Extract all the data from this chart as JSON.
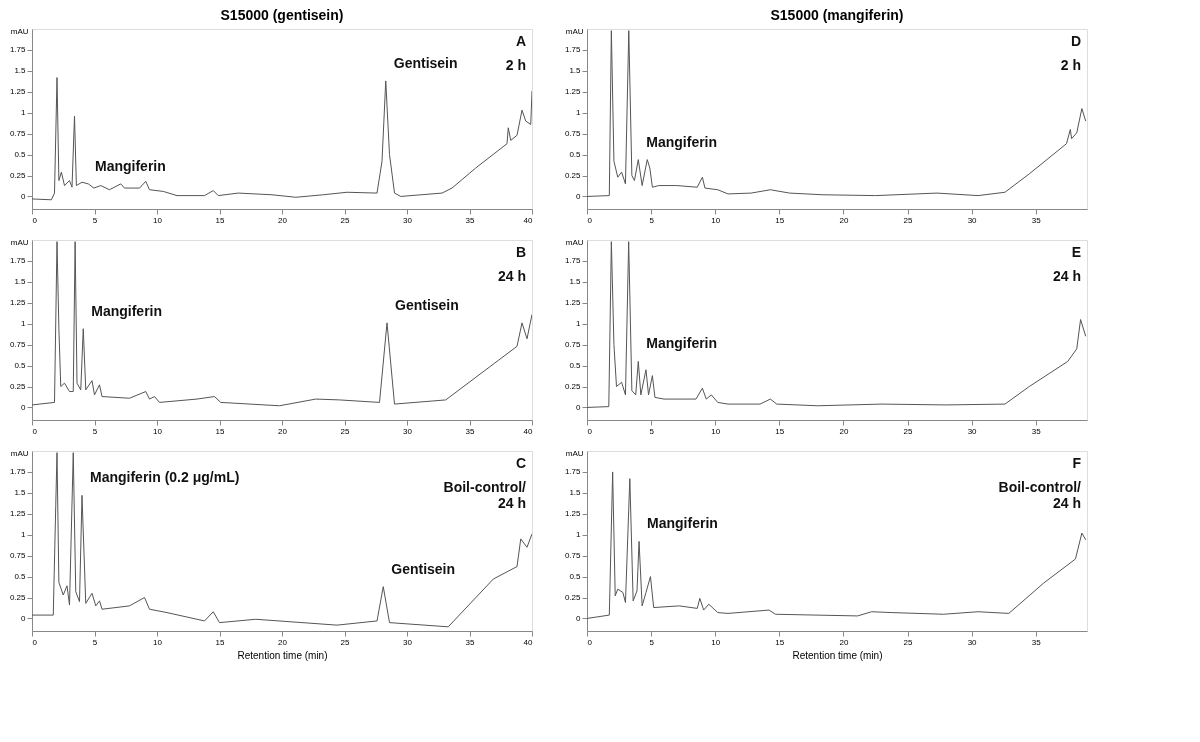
{
  "chart_data": [
    {
      "type": "line",
      "title": "S15000 (gentisein)",
      "ylabel": "mAU",
      "color": "#555555",
      "grid": false,
      "line_style": "solid",
      "xlim": [
        0,
        40
      ],
      "xticks": [
        0,
        5,
        10,
        15,
        20,
        25,
        30,
        35,
        40
      ],
      "ylim": [
        -0.15,
        2.0
      ],
      "yticks": [
        0,
        0.25,
        0.5,
        0.75,
        1,
        1.25,
        1.5,
        1.75
      ],
      "x": [
        0,
        1.55,
        1.8,
        2.0,
        2.15,
        2.35,
        2.6,
        3.0,
        3.2,
        3.4,
        3.55,
        4.0,
        4.5,
        4.95,
        5.5,
        6.2,
        7.1,
        7.4,
        8.6,
        9.1,
        9.4,
        10.5,
        11.6,
        13.8,
        14.5,
        14.9,
        16.5,
        19.2,
        21.1,
        23.3,
        25.2,
        27.6,
        28.0,
        28.3,
        28.6,
        29.0,
        29.5,
        32.8,
        33.6,
        35.5,
        38.0,
        38.1,
        38.3,
        38.8,
        39.2,
        39.5,
        39.9,
        40.0
      ],
      "values": [
        -0.03,
        -0.04,
        0.04,
        1.42,
        0.19,
        0.29,
        0.13,
        0.19,
        0.11,
        0.96,
        0.13,
        0.17,
        0.15,
        0.1,
        0.13,
        0.08,
        0.15,
        0.1,
        0.1,
        0.18,
        0.08,
        0.06,
        0.01,
        0.01,
        0.07,
        0.01,
        0.04,
        0.02,
        -0.01,
        0.02,
        0.05,
        0.04,
        0.42,
        1.38,
        0.5,
        0.04,
        0,
        0.04,
        0.1,
        0.34,
        0.63,
        0.82,
        0.67,
        0.73,
        1.03,
        0.9,
        0.86,
        1.26
      ],
      "annotations": [
        {
          "text": "Gentisein",
          "x": 28.3,
          "y": 1.38
        },
        {
          "text": "Mangiferin",
          "x": 4.4,
          "y": 0.15
        },
        "A",
        "2 h"
      ]
    },
    {
      "type": "line",
      "ylabel": "mAU",
      "color": "#555555",
      "grid": false,
      "line_style": "solid",
      "xlim": [
        0,
        40
      ],
      "xticks": [
        0,
        5,
        10,
        15,
        20,
        25,
        30,
        35,
        40
      ],
      "ylim": [
        -0.15,
        2.0
      ],
      "yticks": [
        0,
        0.25,
        0.5,
        0.75,
        1,
        1.25,
        1.5,
        1.75
      ],
      "x": [
        0,
        1.8,
        2.0,
        2.15,
        2.3,
        2.6,
        3.0,
        3.3,
        3.45,
        3.6,
        3.9,
        4.1,
        4.3,
        4.8,
        5.0,
        5.4,
        5.6,
        7.8,
        9.1,
        9.4,
        9.8,
        10.2,
        13.2,
        14.6,
        15.1,
        19.8,
        22.7,
        24.6,
        27.8,
        28.4,
        29.0,
        33.1,
        38.8,
        39.2,
        39.6,
        40.0
      ],
      "values": [
        0.03,
        0.06,
        1.98,
        0.94,
        0.25,
        0.29,
        0.19,
        0.19,
        1.98,
        0.29,
        0.21,
        0.94,
        0.21,
        0.32,
        0.15,
        0.27,
        0.13,
        0.11,
        0.19,
        0.1,
        0.13,
        0.06,
        0.1,
        0.13,
        0.06,
        0.02,
        0.1,
        0.09,
        0.06,
        1.01,
        0.04,
        0.09,
        0.73,
        1.01,
        0.82,
        1.11
      ],
      "annotations": [
        {
          "text": "Gentisein",
          "x": 28.4,
          "y": 1.01
        },
        {
          "text": "Mangiferin",
          "x": 4.1,
          "y": 0.94
        },
        "B",
        "24 h"
      ]
    },
    {
      "type": "line",
      "ylabel": "mAU",
      "color": "#555555",
      "grid": false,
      "line_style": "solid",
      "xlabel": "Retention time (min)",
      "xlim": [
        0,
        40
      ],
      "xticks": [
        0,
        5,
        10,
        15,
        20,
        25,
        30,
        35,
        40
      ],
      "ylim": [
        -0.15,
        2.0
      ],
      "yticks": [
        0,
        0.25,
        0.5,
        0.75,
        1,
        1.25,
        1.5,
        1.75
      ],
      "x": [
        0,
        1.7,
        1.9,
        2.0,
        2.15,
        2.5,
        2.8,
        3.0,
        3.3,
        3.5,
        3.8,
        4.0,
        4.3,
        4.8,
        5.1,
        5.4,
        5.6,
        7.8,
        9.0,
        9.4,
        10.8,
        13.8,
        14.5,
        15.0,
        17.9,
        24.4,
        27.6,
        28.1,
        28.6,
        33.3,
        36.9,
        38.8,
        39.1,
        39.6,
        40.0
      ],
      "values": [
        0.04,
        0.04,
        1.35,
        1.98,
        0.43,
        0.28,
        0.39,
        0.16,
        1.98,
        0.32,
        0.2,
        1.47,
        0.18,
        0.3,
        0.15,
        0.21,
        0.11,
        0.15,
        0.25,
        0.11,
        0.07,
        -0.03,
        0.08,
        -0.05,
        -0.01,
        -0.08,
        -0.03,
        0.38,
        -0.05,
        -0.1,
        0.47,
        0.62,
        0.95,
        0.85,
        1.01
      ],
      "annotations": [
        {
          "text": "Gentisein",
          "x": 28.1,
          "y": 0.38
        },
        {
          "text": "Mangiferin (0.2 μg/mL)",
          "x": 4.0,
          "y": 1.47
        },
        "C",
        "Boil-control/\n24 h"
      ]
    },
    {
      "type": "line",
      "title": "S15000 (mangiferin)",
      "ylabel": "mAU",
      "color": "#555555",
      "grid": false,
      "line_style": "solid",
      "xlim": [
        0,
        39
      ],
      "xticks": [
        0,
        5,
        10,
        15,
        20,
        25,
        30,
        35
      ],
      "ylim": [
        -0.15,
        2.0
      ],
      "yticks": [
        0,
        0.25,
        0.5,
        0.75,
        1,
        1.25,
        1.5,
        1.75
      ],
      "x": [
        0,
        1.74,
        1.9,
        2.1,
        2.4,
        2.7,
        3.0,
        3.26,
        3.5,
        3.7,
        4.0,
        4.3,
        4.7,
        4.9,
        5.1,
        5.6,
        7.0,
        8.6,
        9.0,
        9.2,
        10.2,
        11.0,
        12.8,
        14.3,
        15.8,
        18.4,
        22.5,
        27.3,
        30.5,
        32.6,
        34.5,
        37.4,
        37.7,
        37.8,
        38.2,
        38.6,
        38.9
      ],
      "values": [
        0,
        0.01,
        1.98,
        0.42,
        0.23,
        0.29,
        0.15,
        1.98,
        0.25,
        0.19,
        0.44,
        0.13,
        0.44,
        0.34,
        0.11,
        0.13,
        0.13,
        0.11,
        0.23,
        0.1,
        0.08,
        0.03,
        0.04,
        0.08,
        0.04,
        0.02,
        0.01,
        0.04,
        0.01,
        0.05,
        0.27,
        0.63,
        0.8,
        0.69,
        0.76,
        1.05,
        0.9
      ],
      "annotations": [
        {
          "text": "Mangiferin",
          "x": 4.0,
          "y": 0.44
        },
        "D",
        "2 h"
      ]
    },
    {
      "type": "line",
      "ylabel": "mAU",
      "color": "#555555",
      "grid": false,
      "line_style": "solid",
      "xlim": [
        0,
        39
      ],
      "xticks": [
        0,
        5,
        10,
        15,
        20,
        25,
        30,
        35
      ],
      "ylim": [
        -0.15,
        2.0
      ],
      "yticks": [
        0,
        0.25,
        0.5,
        0.75,
        1,
        1.25,
        1.5,
        1.75
      ],
      "x": [
        0,
        1.7,
        1.9,
        2.1,
        2.3,
        2.7,
        3.0,
        3.25,
        3.5,
        3.8,
        4.0,
        4.2,
        4.6,
        4.8,
        5.1,
        5.3,
        6.0,
        8.5,
        9.0,
        9.3,
        9.7,
        10.2,
        11.0,
        13.5,
        14.3,
        14.8,
        18.0,
        23.0,
        28.0,
        32.6,
        34.5,
        37.5,
        38.2,
        38.5,
        38.9
      ],
      "values": [
        0,
        0.01,
        1.98,
        0.75,
        0.25,
        0.3,
        0.15,
        1.98,
        0.2,
        0.15,
        0.55,
        0.15,
        0.45,
        0.15,
        0.38,
        0.12,
        0.1,
        0.1,
        0.23,
        0.1,
        0.15,
        0.06,
        0.04,
        0.04,
        0.1,
        0.04,
        0.02,
        0.04,
        0.03,
        0.04,
        0.25,
        0.55,
        0.7,
        1.05,
        0.85
      ],
      "annotations": [
        {
          "text": "Mangiferin",
          "x": 4.0,
          "y": 0.55
        },
        "E",
        "24 h"
      ]
    },
    {
      "type": "line",
      "ylabel": "mAU",
      "color": "#555555",
      "grid": false,
      "line_style": "solid",
      "xlabel": "Retention time (min)",
      "xlim": [
        0,
        39
      ],
      "xticks": [
        0,
        5,
        10,
        15,
        20,
        25,
        30,
        35
      ],
      "ylim": [
        -0.15,
        2.0
      ],
      "yticks": [
        0,
        0.25,
        0.5,
        0.75,
        1,
        1.25,
        1.5,
        1.75
      ],
      "x": [
        0,
        1.74,
        2.0,
        2.2,
        2.4,
        2.8,
        3.0,
        3.34,
        3.6,
        3.9,
        4.06,
        4.3,
        4.6,
        4.95,
        5.2,
        7.2,
        8.6,
        8.8,
        9.1,
        9.5,
        10.2,
        11.0,
        14.2,
        14.7,
        21.1,
        22.2,
        23.8,
        27.8,
        30.5,
        32.9,
        35.6,
        38.1,
        38.6,
        38.9
      ],
      "values": [
        0,
        0.04,
        1.75,
        0.27,
        0.35,
        0.31,
        0.19,
        1.67,
        0.21,
        0.33,
        0.92,
        0.15,
        0.31,
        0.5,
        0.13,
        0.15,
        0.12,
        0.24,
        0.1,
        0.17,
        0.07,
        0.06,
        0.1,
        0.05,
        0.03,
        0.08,
        0.07,
        0.05,
        0.08,
        0.06,
        0.42,
        0.71,
        1.02,
        0.94
      ],
      "annotations": [
        {
          "text": "Mangiferin",
          "x": 4.06,
          "y": 0.92
        },
        "F",
        "Boil-control/\n24 h"
      ]
    }
  ]
}
